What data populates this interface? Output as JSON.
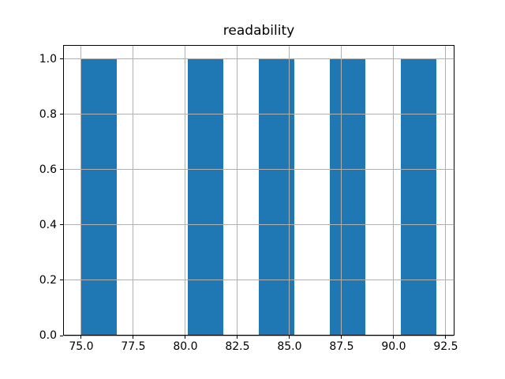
{
  "chart_data": {
    "type": "bar",
    "subtype": "histogram",
    "title": "readability",
    "xlabel": "",
    "ylabel": "",
    "bin_edges": [
      75.0,
      76.71,
      78.41,
      80.12,
      81.82,
      83.53,
      85.23,
      86.94,
      88.65,
      90.35,
      92.06
    ],
    "counts": [
      1,
      0,
      0,
      1,
      0,
      1,
      0,
      1,
      0,
      1
    ],
    "x_ticks": [
      75.0,
      77.5,
      80.0,
      82.5,
      85.0,
      87.5,
      90.0,
      92.5
    ],
    "y_ticks": [
      0.0,
      0.2,
      0.4,
      0.6,
      0.8,
      1.0
    ],
    "xlim": [
      74.13,
      92.92
    ],
    "ylim": [
      0,
      1.05
    ],
    "grid": true,
    "legend": false,
    "bar_color": "#1f77b4",
    "grid_color": "#b0b0b0",
    "spine_color": "#000000",
    "background_color": "#ffffff"
  }
}
